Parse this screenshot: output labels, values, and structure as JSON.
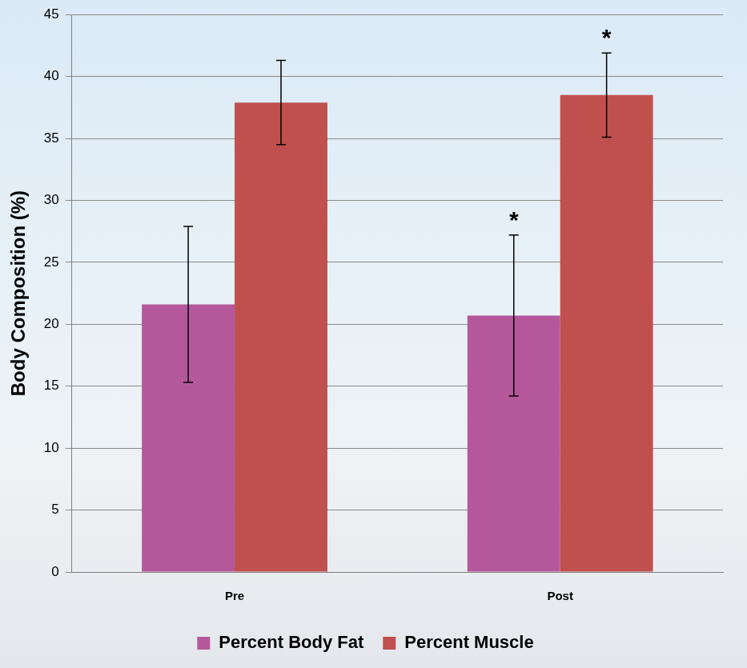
{
  "chart_data": {
    "type": "bar",
    "categories": [
      "Pre",
      "Post"
    ],
    "series": [
      {
        "name": "Percent Body Fat",
        "color": "#b5589b",
        "values": [
          21.6,
          20.7
        ],
        "errors": [
          6.3,
          6.5
        ],
        "annotations": [
          null,
          "*"
        ]
      },
      {
        "name": "Percent Muscle",
        "color": "#c0504d",
        "values": [
          37.9,
          38.5
        ],
        "errors": [
          3.4,
          3.4
        ],
        "annotations": [
          null,
          "*"
        ]
      }
    ],
    "y_label": "Body Composition (%)",
    "ylim": [
      0,
      45
    ],
    "yticks": [
      0,
      5,
      10,
      15,
      20,
      25,
      30,
      35,
      40,
      45
    ],
    "grid": true,
    "legend": "bottom"
  }
}
